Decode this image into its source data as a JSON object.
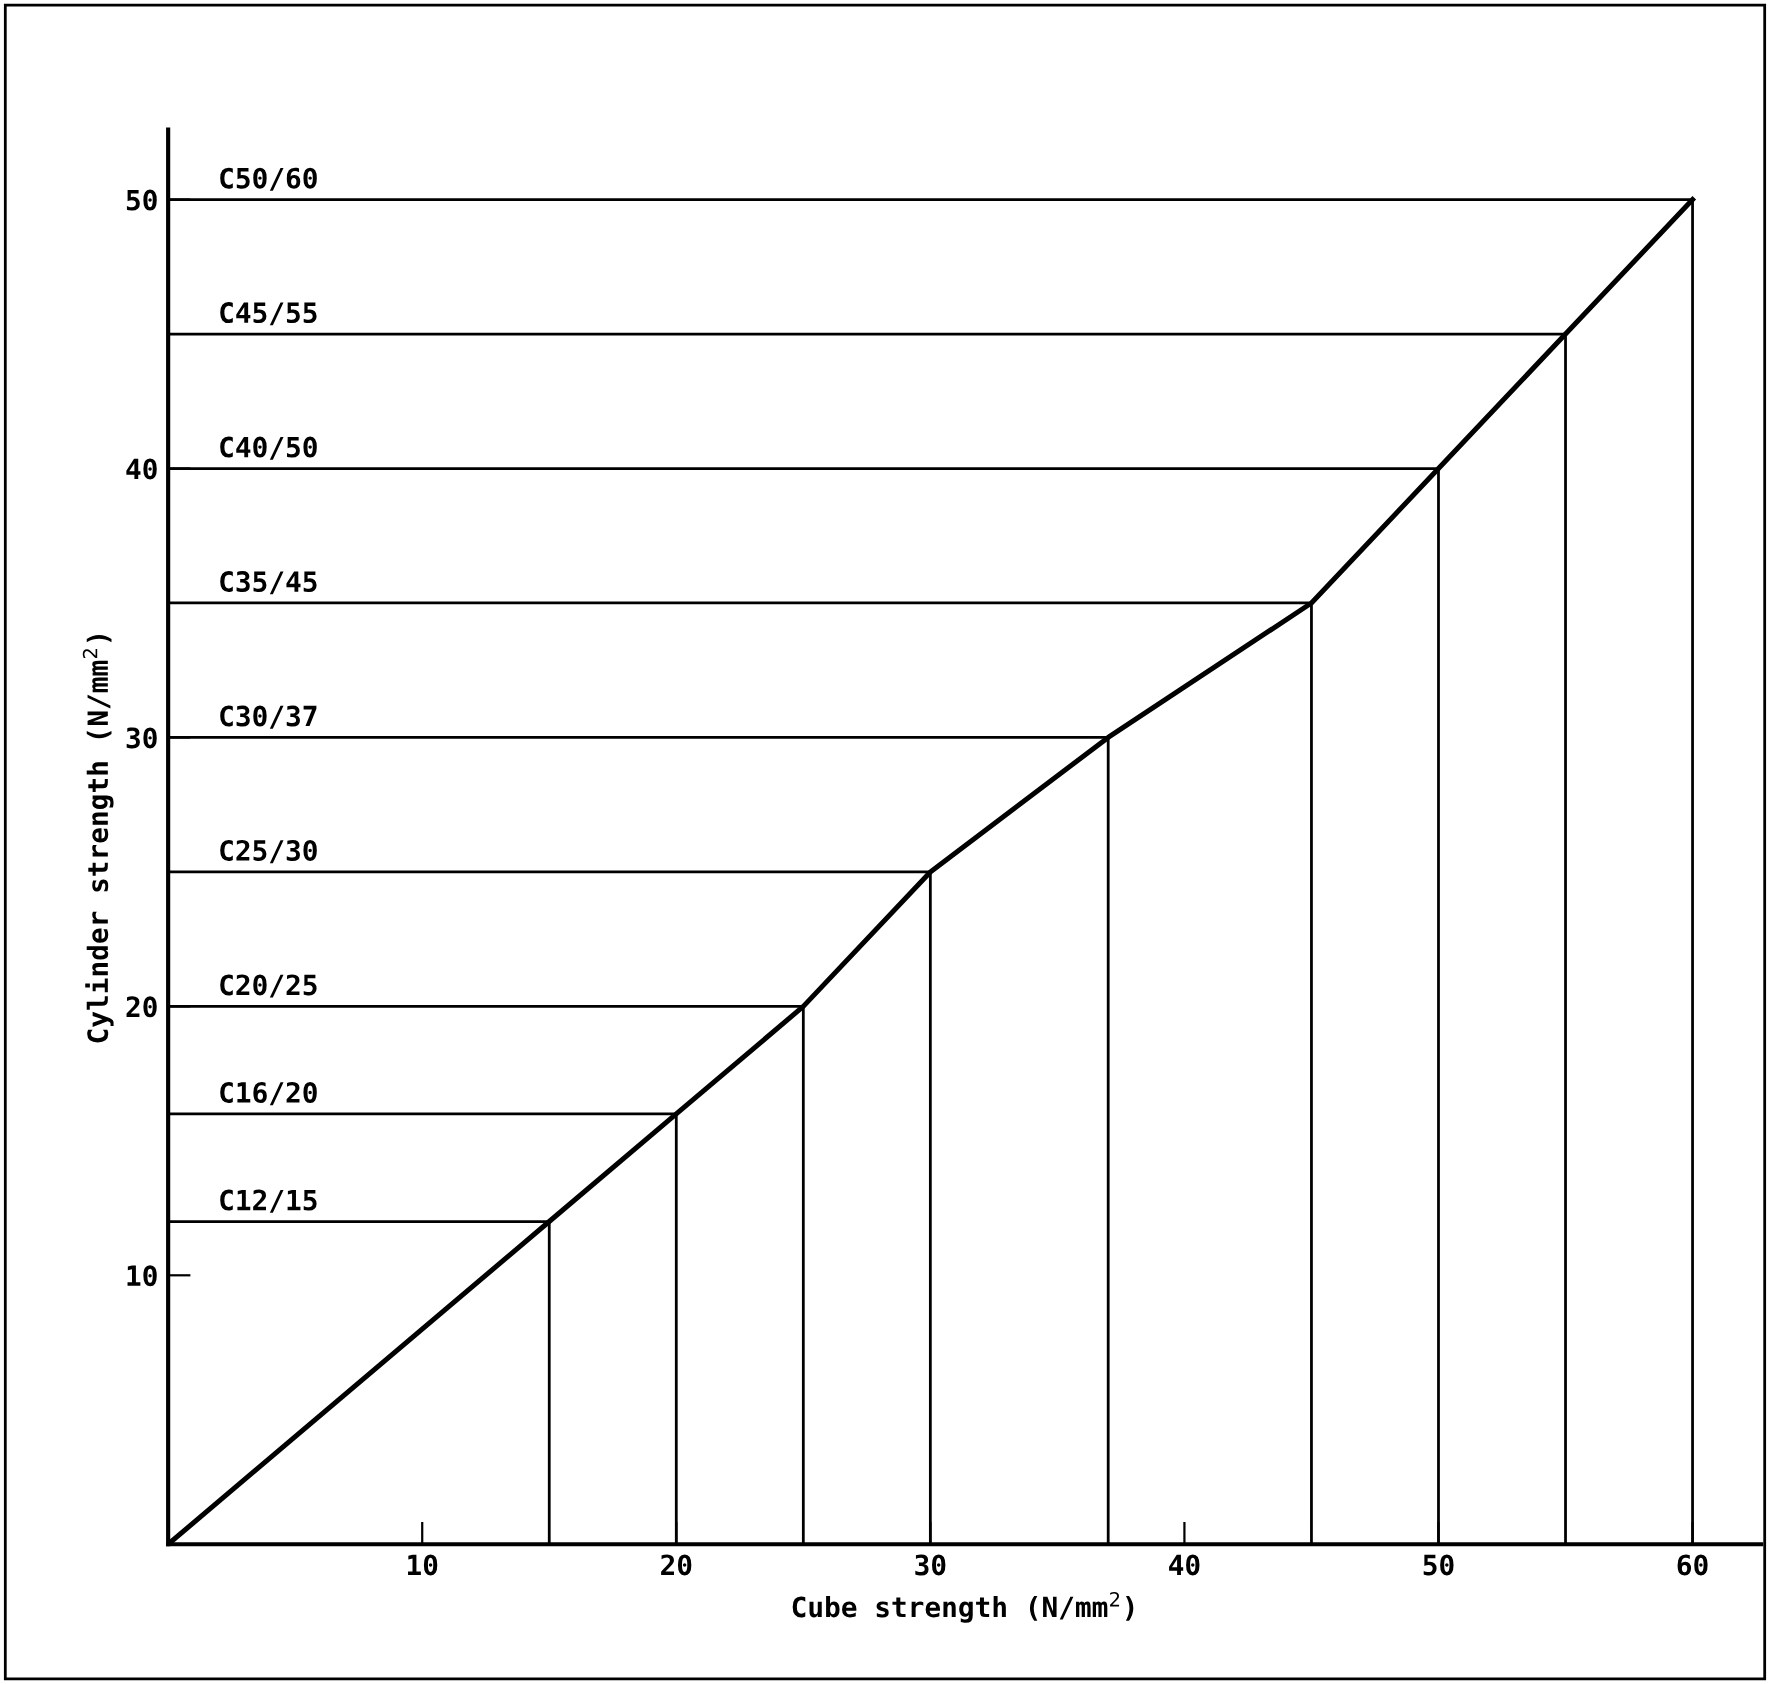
{
  "chart_data": {
    "type": "line",
    "xlabel": "Cube strength (N/mm$^{2}$)",
    "ylabel": "Cylinder strength (N/mm$^{2}$)",
    "x": [
      0,
      15,
      20,
      25,
      30,
      37,
      45,
      50,
      55,
      60
    ],
    "series": [
      {
        "color": "#000000",
        "values": [
          0,
          12,
          16,
          20,
          25,
          30,
          35,
          40,
          45,
          50
        ]
      },
      {
        "color": "#000000",
        "x": [
          0,
          15,
          15
        ],
        "values": [
          12,
          12,
          0
        ]
      },
      {
        "color": "#000000",
        "x": [
          0,
          20,
          20
        ],
        "values": [
          16,
          16,
          0
        ]
      },
      {
        "color": "#000000",
        "x": [
          0,
          25,
          25
        ],
        "values": [
          20,
          20,
          0
        ]
      },
      {
        "color": "#000000",
        "x": [
          0,
          30,
          30
        ],
        "values": [
          25,
          25,
          0
        ]
      },
      {
        "color": "#000000",
        "x": [
          0,
          37,
          37
        ],
        "values": [
          30,
          30,
          0
        ]
      },
      {
        "color": "#000000",
        "x": [
          0,
          45,
          45
        ],
        "values": [
          35,
          35,
          0
        ]
      },
      {
        "color": "#000000",
        "x": [
          0,
          50,
          50
        ],
        "values": [
          40,
          40,
          0
        ]
      },
      {
        "color": "#000000",
        "x": [
          0,
          55,
          55
        ],
        "values": [
          45,
          45,
          0
        ]
      },
      {
        "color": "#000000",
        "x": [
          0,
          60,
          60
        ],
        "values": [
          50,
          50,
          0
        ]
      }
    ],
    "xlim": [
      0,
      62.7
    ],
    "ylim": [
      0,
      52.6
    ],
    "xticks": [
      10,
      20,
      30,
      40,
      50,
      60
    ],
    "yticks": [
      10,
      20,
      30,
      40,
      50
    ],
    "grid": false,
    "marker": "none",
    "line_style": "solid",
    "annotations": [
      {
        "text": "C12/15",
        "y": 12
      },
      {
        "text": "C16/20",
        "y": 16
      },
      {
        "text": "C20/25",
        "y": 20
      },
      {
        "text": "C25/30",
        "y": 25
      },
      {
        "text": "C30/37",
        "y": 30
      },
      {
        "text": "C35/45",
        "y": 35
      },
      {
        "text": "C40/50",
        "y": 40
      },
      {
        "text": "C45/55",
        "y": 45
      },
      {
        "text": "C50/60",
        "y": 50
      }
    ]
  }
}
